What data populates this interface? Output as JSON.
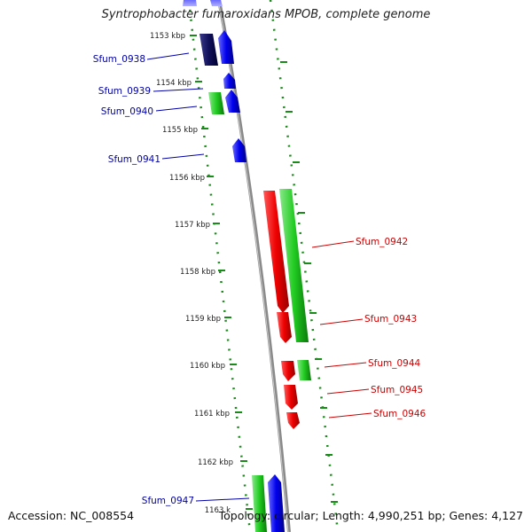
{
  "title": "Syntrophobacter fumaroxidans MPOB, complete genome",
  "footer": {
    "accession": "Accession: NC_008554",
    "summary": "Topology: circular; Length: 4,990,251 bp; Genes: 4,127"
  },
  "colors": {
    "forward_gene": "#1010e0",
    "forward_gene_dark": "#0a0a6a",
    "reverse_gene": "#e01010",
    "cds": "#22bb22",
    "left_label": "#0000aa",
    "right_label": "#cc0000",
    "tick": "#1a8a1a",
    "backbone": "#888888"
  },
  "scale_ticks": [
    "1153 kbp",
    "1154 kbp",
    "1155 kbp",
    "1156 kbp",
    "1157 kbp",
    "1158 kbp",
    "1159 kbp",
    "1160 kbp",
    "1161 kbp",
    "1162 kbp",
    "1163 k"
  ],
  "genes_left": [
    "Sfum_0938",
    "Sfum_0939",
    "Sfum_0940",
    "Sfum_0941",
    "Sfum_0947"
  ],
  "genes_right": [
    "Sfum_0942",
    "Sfum_0943",
    "Sfum_0944",
    "Sfum_0945",
    "Sfum_0946"
  ]
}
